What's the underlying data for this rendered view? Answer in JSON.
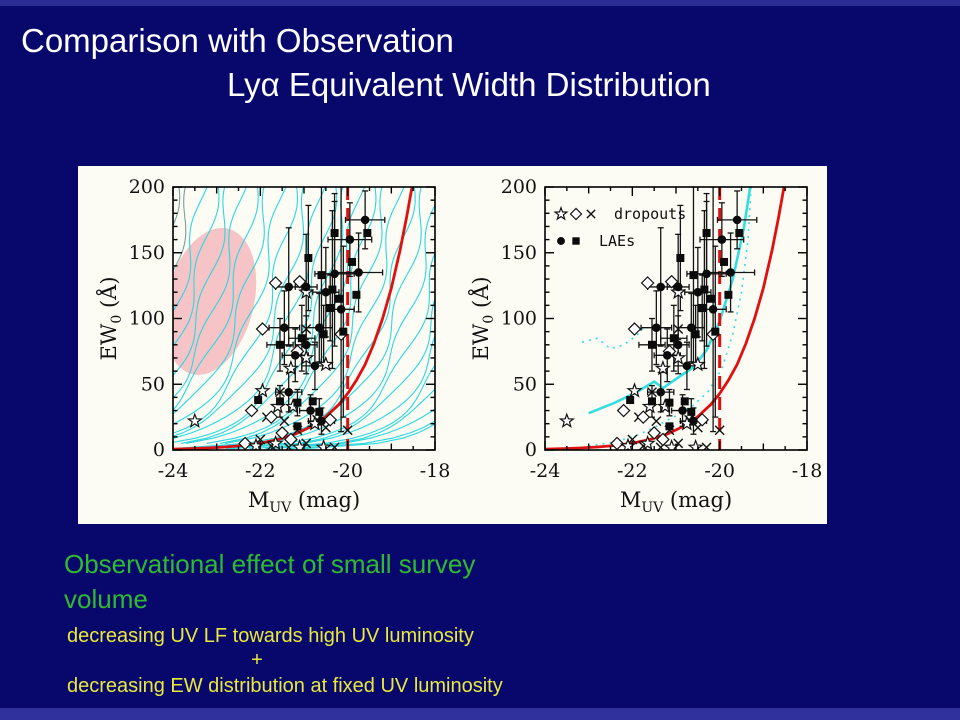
{
  "slide": {
    "background": "#08086c",
    "edge_strip_color": "#2e2e99",
    "title_line1": "Comparison with Observation",
    "title_line2": "Lyα Equivalent Width Distribution",
    "title_color": "#ffffff",
    "caption": {
      "line1": "Observational effect of small survey",
      "line2": "volume",
      "color": "#2fbb2f"
    },
    "note": {
      "line1": "decreasing UV LF towards high UV luminosity",
      "plus": "+",
      "line2": "decreasing EW distribution at fixed UV luminosity",
      "color": "#e9e93c"
    }
  },
  "chart_data": {
    "type": "scatter",
    "panels": [
      {
        "name": "model-contours-panel",
        "xlabel_main": "M",
        "xlabel_sub": "UV",
        "xlabel_rest": " (mag)",
        "ylabel_main": "EW",
        "ylabel_sub": "0",
        "ylabel_rest": " (Å)",
        "xlim": [
          -24,
          -18
        ],
        "ylim": [
          0,
          200
        ],
        "xticks": [
          -24,
          -22,
          -20,
          -18
        ],
        "xtick_labels": [
          "-24",
          "-22",
          "-20",
          "-18"
        ],
        "yticks": [
          0,
          50,
          100,
          150,
          200
        ],
        "ytick_labels": [
          "0",
          "50",
          "100",
          "150",
          "200"
        ],
        "x_minor_step": 0.5,
        "y_minor_step": 10,
        "highlight_ellipse": {
          "cx": -23.15,
          "cy": 113,
          "rx": 1.0,
          "ry": 57,
          "rot": 14,
          "color": "#f6c3c6"
        },
        "contours": {
          "k": 0.95,
          "wiggle": 0.12,
          "color": "#2ad8e0",
          "gray_color": "#7e9c9c",
          "gray_outer": 2,
          "offsets": [
            -23.9,
            -23.6,
            -23.3,
            -23.0,
            -22.7,
            -22.4,
            -22.1,
            -21.8,
            -21.5,
            -21.2,
            -20.9,
            -20.6,
            -20.3,
            -20.0,
            -19.7,
            -19.4,
            -19.1,
            -18.8,
            -18.5,
            -18.2,
            -17.9,
            -17.6,
            -17.3,
            -17.0,
            -16.7,
            -16.4,
            -16.1,
            -15.8,
            -15.5
          ]
        },
        "red_color": "#e11010",
        "red_dashed_x": -20,
        "red_curve": [
          [
            -24,
            0.6
          ],
          [
            -23.6,
            1.0
          ],
          [
            -23.2,
            1.5
          ],
          [
            -22.8,
            2.3
          ],
          [
            -22.4,
            3.4
          ],
          [
            -22.0,
            5.2
          ],
          [
            -21.6,
            8.0
          ],
          [
            -21.2,
            12.1
          ],
          [
            -20.8,
            18.5
          ],
          [
            -20.5,
            25.3
          ],
          [
            -20.2,
            34.7
          ],
          [
            -20.0,
            43
          ],
          [
            -19.8,
            53
          ],
          [
            -19.6,
            65
          ],
          [
            -19.4,
            81
          ],
          [
            -19.2,
            100
          ],
          [
            -19.0,
            123
          ],
          [
            -18.8,
            152
          ],
          [
            -18.65,
            177
          ],
          [
            -18.5,
            205
          ]
        ]
      },
      {
        "name": "observed-comparison-panel",
        "xlabel_main": "M",
        "xlabel_sub": "UV",
        "xlabel_rest": " (mag)",
        "ylabel_main": "EW",
        "ylabel_sub": "0",
        "ylabel_rest": " (Å)",
        "xlim": [
          -24,
          -18
        ],
        "ylim": [
          0,
          200
        ],
        "xticks": [
          -24,
          -22,
          -20,
          -18
        ],
        "xtick_labels": [
          "-24",
          "-22",
          "-20",
          "-18"
        ],
        "yticks": [
          0,
          50,
          100,
          150,
          200
        ],
        "ytick_labels": [
          "0",
          "50",
          "100",
          "150",
          "200"
        ],
        "x_minor_step": 0.5,
        "y_minor_step": 10,
        "legend": {
          "rows": [
            {
              "symbols": [
                "star",
                "diamond",
                "cross"
              ],
              "label": "dropouts"
            },
            {
              "symbols": [
                "circle",
                "square"
              ],
              "label": "LAEs"
            }
          ]
        },
        "cyan_lines": [
          {
            "style": "solid",
            "color": "#35dede",
            "width": 2.6,
            "points": [
              [
                -23.0,
                28
              ],
              [
                -22.4,
                36
              ],
              [
                -21.9,
                44
              ],
              [
                -21.5,
                52
              ],
              [
                -21.3,
                47
              ],
              [
                -21.0,
                54
              ],
              [
                -20.6,
                63
              ],
              [
                -20.3,
                76
              ],
              [
                -20.0,
                98
              ],
              [
                -19.7,
                130
              ],
              [
                -19.45,
                168
              ],
              [
                -19.3,
                200
              ]
            ]
          },
          {
            "style": "dotted",
            "color": "#35dede",
            "width": 1.6,
            "dash": "2 5",
            "points": [
              [
                -23.15,
                82
              ],
              [
                -22.8,
                85
              ],
              [
                -22.5,
                77
              ],
              [
                -22.2,
                80
              ],
              [
                -21.9,
                87
              ],
              [
                -21.75,
                93
              ]
            ]
          },
          {
            "style": "dotted",
            "color": "#35dede",
            "width": 1.6,
            "dash": "2 5",
            "points": [
              [
                -23.0,
                3
              ],
              [
                -22.4,
                6
              ],
              [
                -21.9,
                11
              ],
              [
                -21.45,
                18
              ],
              [
                -21.0,
                26
              ],
              [
                -20.6,
                34
              ],
              [
                -20.25,
                45
              ],
              [
                -19.95,
                62
              ],
              [
                -19.7,
                88
              ],
              [
                -19.5,
                120
              ],
              [
                -19.35,
                160
              ],
              [
                -19.28,
                200
              ]
            ]
          }
        ],
        "red_color": "#e11010",
        "red_dashed_x": -20,
        "red_curve": [
          [
            -24,
            0.6
          ],
          [
            -23.6,
            1.0
          ],
          [
            -23.2,
            1.5
          ],
          [
            -22.8,
            2.3
          ],
          [
            -22.4,
            3.4
          ],
          [
            -22.0,
            5.2
          ],
          [
            -21.6,
            8.0
          ],
          [
            -21.2,
            12.1
          ],
          [
            -20.8,
            18.5
          ],
          [
            -20.5,
            25.3
          ],
          [
            -20.2,
            34.7
          ],
          [
            -20.0,
            43
          ],
          [
            -19.8,
            53
          ],
          [
            -19.6,
            65
          ],
          [
            -19.4,
            81
          ],
          [
            -19.2,
            100
          ],
          [
            -19.0,
            123
          ],
          [
            -18.8,
            152
          ],
          [
            -18.65,
            177
          ],
          [
            -18.5,
            205
          ]
        ]
      }
    ],
    "observations": {
      "circles": [
        [
          -21.35,
          124,
          45,
          0.3
        ],
        [
          -20.95,
          124,
          40,
          0.25
        ],
        [
          -20.5,
          120,
          34,
          0.3
        ],
        [
          -20.3,
          134,
          55,
          0.45
        ],
        [
          -19.95,
          160,
          28,
          0.5
        ],
        [
          -19.6,
          175,
          22,
          0.45
        ],
        [
          -20.15,
          107,
          93,
          0.3
        ],
        [
          -20.65,
          93,
          26,
          0.3
        ],
        [
          -21.45,
          93,
          28,
          0.35
        ],
        [
          -20.95,
          80,
          22,
          0.25
        ],
        [
          -21.2,
          72,
          20,
          0.3
        ],
        [
          -20.75,
          64,
          18,
          0.3
        ],
        [
          -21.35,
          44,
          15,
          0.3
        ],
        [
          -20.85,
          30,
          12,
          0.25
        ],
        [
          -20.6,
          22,
          10,
          0.3
        ],
        [
          -19.75,
          135,
          30,
          0.55
        ]
      ],
      "squares": [
        [
          -20.9,
          146,
          40,
          0
        ],
        [
          -20.3,
          165,
          30,
          0
        ],
        [
          -19.55,
          165,
          0,
          0
        ],
        [
          -20.6,
          133,
          67,
          0
        ],
        [
          -20.35,
          122,
          60,
          0
        ],
        [
          -20.2,
          115,
          0,
          0
        ],
        [
          -20.4,
          108,
          25,
          0
        ],
        [
          -19.9,
          143,
          0,
          0
        ],
        [
          -20.1,
          90,
          65,
          0
        ],
        [
          -20.55,
          88,
          22,
          0
        ],
        [
          -21.05,
          85,
          25,
          0.3
        ],
        [
          -21.55,
          80,
          20,
          0.3
        ],
        [
          -22.05,
          38,
          0,
          0
        ],
        [
          -21.55,
          37,
          12,
          0
        ],
        [
          -21.15,
          36,
          10,
          0
        ],
        [
          -20.8,
          37,
          0,
          0
        ],
        [
          -20.65,
          29,
          10,
          0
        ],
        [
          -21.15,
          18,
          0,
          0
        ],
        [
          -19.8,
          118,
          0,
          0
        ]
      ],
      "stars": [
        [
          -23.5,
          22
        ],
        [
          -21.95,
          45
        ],
        [
          -21.6,
          33
        ],
        [
          -21.25,
          33
        ],
        [
          -20.95,
          70
        ],
        [
          -21.3,
          62
        ],
        [
          -20.75,
          20
        ],
        [
          -20.5,
          65
        ],
        [
          -20.95,
          120
        ],
        [
          -21.65,
          5
        ],
        [
          -22.1,
          3
        ],
        [
          -21.1,
          2
        ],
        [
          -20.55,
          2
        ]
      ],
      "diamonds": [
        [
          -21.65,
          127
        ],
        [
          -21.1,
          128
        ],
        [
          -21.95,
          92
        ],
        [
          -22.2,
          30
        ],
        [
          -21.75,
          25
        ],
        [
          -21.5,
          13
        ],
        [
          -20.4,
          23
        ],
        [
          -22.35,
          5
        ],
        [
          -21.15,
          75
        ],
        [
          -21.3,
          8
        ],
        [
          -20.15,
          88
        ]
      ],
      "crosses": [
        [
          -21.55,
          44
        ],
        [
          -20.95,
          92
        ],
        [
          -21.85,
          25
        ],
        [
          -21.45,
          22
        ],
        [
          -21.15,
          15
        ],
        [
          -20.7,
          23
        ],
        [
          -20.5,
          17
        ],
        [
          -22.0,
          8
        ],
        [
          -21.75,
          3
        ],
        [
          -21.35,
          2
        ],
        [
          -20.95,
          5
        ],
        [
          -20.3,
          2
        ],
        [
          -20.0,
          15
        ]
      ]
    }
  }
}
